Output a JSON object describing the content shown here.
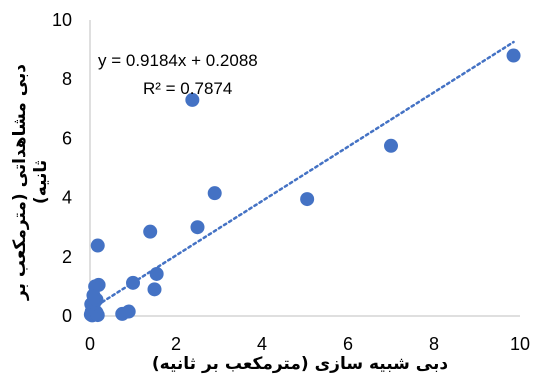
{
  "chart_data": {
    "type": "scatter",
    "title": "",
    "xlabel": "دبی شبیه سازی (مترمکعب بر ثانیه)",
    "ylabel_line1": "دبی مشاهداتی (مترمکعب بر",
    "ylabel_line2": "ثانیه)",
    "xlim": [
      0,
      10
    ],
    "ylim": [
      0,
      10
    ],
    "xticks": [
      0,
      2,
      4,
      6,
      8,
      10
    ],
    "yticks": [
      0,
      2,
      4,
      6,
      8,
      10
    ],
    "grid": false,
    "legend": "none",
    "marker_color": "#4472C4",
    "trendline": {
      "slope": 0.9184,
      "intercept": 0.2088,
      "style": "dotted",
      "x_range": [
        0.05,
        9.85
      ],
      "equation_label": "y = 0.9184x + 0.2088",
      "r2_label": "R² = 0.7874"
    },
    "points": [
      {
        "x": 0.02,
        "y": 0.05
      },
      {
        "x": 0.05,
        "y": 0.02
      },
      {
        "x": 0.08,
        "y": 0.1
      },
      {
        "x": 0.1,
        "y": 0.2
      },
      {
        "x": 0.12,
        "y": 0.05
      },
      {
        "x": 0.04,
        "y": 0.15
      },
      {
        "x": 0.15,
        "y": 0.12
      },
      {
        "x": 0.18,
        "y": 0.03
      },
      {
        "x": 0.06,
        "y": 0.3
      },
      {
        "x": 0.03,
        "y": 0.4
      },
      {
        "x": 0.1,
        "y": 0.45
      },
      {
        "x": 0.15,
        "y": 0.55
      },
      {
        "x": 0.08,
        "y": 0.7
      },
      {
        "x": 0.12,
        "y": 1.0
      },
      {
        "x": 0.2,
        "y": 1.05
      },
      {
        "x": 0.18,
        "y": 2.38
      },
      {
        "x": 0.75,
        "y": 0.07
      },
      {
        "x": 0.9,
        "y": 0.15
      },
      {
        "x": 1.0,
        "y": 1.12
      },
      {
        "x": 1.4,
        "y": 2.85
      },
      {
        "x": 1.5,
        "y": 0.9
      },
      {
        "x": 1.55,
        "y": 1.42
      },
      {
        "x": 2.38,
        "y": 7.3
      },
      {
        "x": 2.5,
        "y": 3.0
      },
      {
        "x": 2.9,
        "y": 4.15
      },
      {
        "x": 5.05,
        "y": 3.95
      },
      {
        "x": 7.0,
        "y": 5.75
      },
      {
        "x": 9.85,
        "y": 8.8
      }
    ]
  }
}
